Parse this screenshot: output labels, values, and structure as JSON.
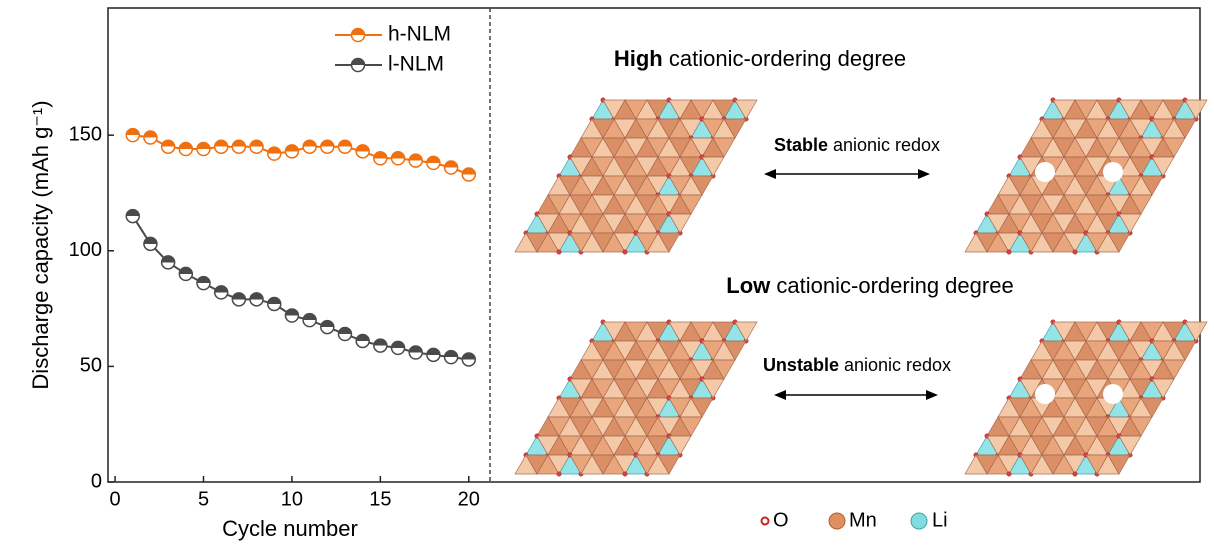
{
  "chart_data": {
    "type": "line",
    "x": [
      1,
      2,
      3,
      4,
      5,
      6,
      7,
      8,
      9,
      10,
      11,
      12,
      13,
      14,
      15,
      16,
      17,
      18,
      19,
      20
    ],
    "series": [
      {
        "name": "h-NLM",
        "color": "#f07010",
        "values": [
          150,
          149,
          145,
          144,
          144,
          145,
          145,
          145,
          142,
          143,
          145,
          145,
          145,
          143,
          140,
          140,
          139,
          138,
          136,
          133
        ]
      },
      {
        "name": "l-NLM",
        "color": "#4a4a4a",
        "values": [
          115,
          103,
          95,
          90,
          86,
          82,
          79,
          79,
          77,
          72,
          70,
          67,
          64,
          61,
          59,
          58,
          56,
          55,
          54,
          53
        ]
      }
    ],
    "xlim": [
      -0.4,
      21.2
    ],
    "ylim": [
      0,
      205
    ],
    "xticks": [
      0,
      5,
      10,
      15,
      20
    ],
    "yticks": [
      0,
      50,
      100,
      150
    ],
    "x_label": "Cycle number",
    "y_label": "Discharge capacity (mAh g⁻¹)",
    "legend": "upper center"
  },
  "diagram": {
    "panels": [
      {
        "title_bold": "High",
        "title": "cationic-ordering degree",
        "arrow_bold": "Stable",
        "arrow_label": "anionic redox"
      },
      {
        "title_bold": "Low",
        "title": "cationic-ordering degree",
        "arrow_bold": "Unstable",
        "arrow_label": "anionic redox"
      }
    ],
    "legend": [
      "O",
      "Mn",
      "Li"
    ]
  }
}
